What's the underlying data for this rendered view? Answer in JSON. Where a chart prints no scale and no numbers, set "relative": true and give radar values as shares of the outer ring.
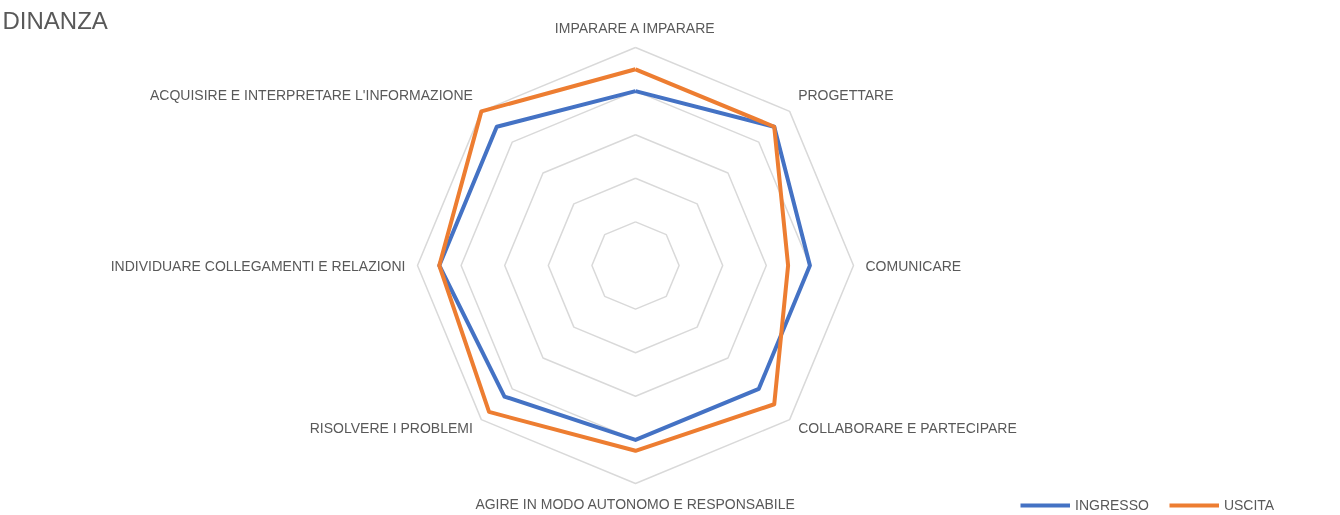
{
  "chart_data": {
    "type": "radar",
    "title": "DINANZA",
    "relative": true,
    "grid": true,
    "legend": "bottom right",
    "categories": [
      "IMPARARE A IMPARARE",
      "PROGETTARE",
      "COMUNICARE",
      "COLLABORARE E PARTECIPARE",
      "AGIRE IN MODO AUTONOMO E RESPONSABILE",
      "RISOLVERE I PROBLEMI",
      "INDIVIDUARE COLLEGAMENTI E RELAZIONI",
      "ACQUISIRE E INTERPRETARE L'INFORMAZIONE"
    ],
    "series": [
      {
        "name": "INGRESSO",
        "color": "#4472c4",
        "values": [
          0.8,
          0.9,
          0.8,
          0.8,
          0.8,
          0.85,
          0.9,
          0.9
        ]
      },
      {
        "name": "USCITA",
        "color": "#ed7d31",
        "values": [
          0.9,
          0.9,
          0.7,
          0.9,
          0.85,
          0.95,
          0.9,
          1.0
        ]
      }
    ]
  }
}
